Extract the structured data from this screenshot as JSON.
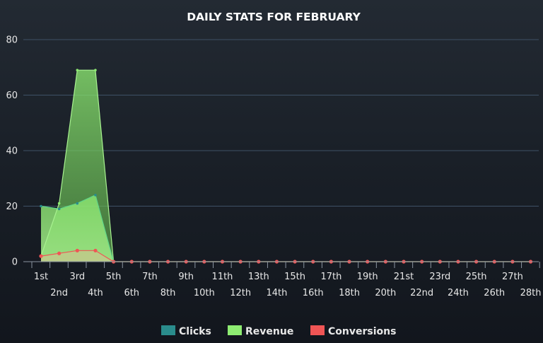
{
  "chart_data": {
    "type": "area",
    "title": "DAILY STATS FOR FEBRUARY",
    "xlabel": "",
    "ylabel": "",
    "ylim": [
      0,
      80
    ],
    "y_ticks": [
      "0",
      "20",
      "40",
      "60",
      "80"
    ],
    "grid": true,
    "legend_position": "bottom",
    "categories": [
      "1st",
      "2nd",
      "3rd",
      "4th",
      "5th",
      "6th",
      "7th",
      "8th",
      "9th",
      "10th",
      "11th",
      "12th",
      "13th",
      "14th",
      "15th",
      "16th",
      "17th",
      "18th",
      "19th",
      "20th",
      "21st",
      "22nd",
      "23rd",
      "24th",
      "25th",
      "26th",
      "27th",
      "28th"
    ],
    "series": [
      {
        "name": "Clicks",
        "color": "#2a8c8c",
        "values": [
          20,
          19,
          21,
          24,
          0,
          0,
          0,
          0,
          0,
          0,
          0,
          0,
          0,
          0,
          0,
          0,
          0,
          0,
          0,
          0,
          0,
          0,
          0,
          0,
          0,
          0,
          0,
          0
        ]
      },
      {
        "name": "Revenue",
        "color": "#8eec72",
        "values": [
          2,
          21,
          69,
          69,
          0,
          0,
          0,
          0,
          0,
          0,
          0,
          0,
          0,
          0,
          0,
          0,
          0,
          0,
          0,
          0,
          0,
          0,
          0,
          0,
          0,
          0,
          0,
          0
        ]
      },
      {
        "name": "Conversions",
        "color": "#f05555",
        "values": [
          2,
          3,
          4,
          4,
          0,
          0,
          0,
          0,
          0,
          0,
          0,
          0,
          0,
          0,
          0,
          0,
          0,
          0,
          0,
          0,
          0,
          0,
          0,
          0,
          0,
          0,
          0,
          0
        ]
      }
    ]
  }
}
